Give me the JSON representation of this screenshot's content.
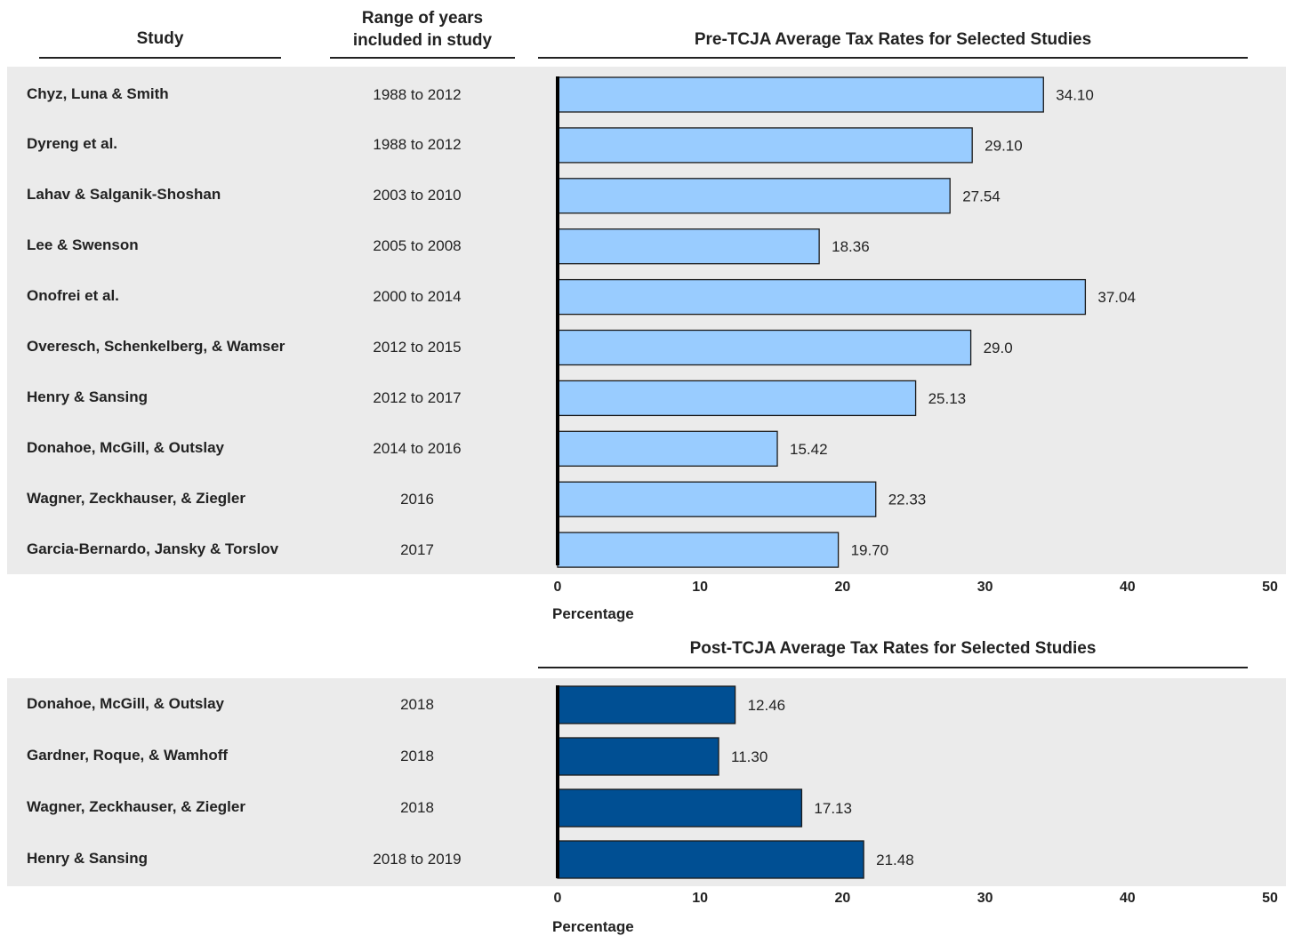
{
  "headers": {
    "study": "Study",
    "years_line1": "Range of years",
    "years_line2": "included in study"
  },
  "colors": {
    "pre_bar": "#99ccff",
    "post_bar": "#004f93",
    "panel_bg": "#ebebeb",
    "axis": "#000000"
  },
  "chart_data": [
    {
      "type": "bar",
      "orientation": "horizontal",
      "title": "Pre-TCJA Average Tax Rates for Selected Studies",
      "xlabel": "Percentage",
      "xlim": [
        0,
        50
      ],
      "xticks": [
        "0",
        "10",
        "20",
        "30",
        "40",
        "50"
      ],
      "grid": false,
      "categories": [
        "Chyz, Luna & Smith",
        "Dyreng et al.",
        "Lahav & Salganik-Shoshan",
        "Lee & Swenson",
        "Onofrei et al.",
        "Overesch, Schenkelberg, & Wamser",
        "Henry & Sansing",
        "Donahoe, McGill, & Outslay",
        "Wagner, Zeckhauser, & Ziegler",
        "Garcia-Bernardo, Jansky & Torslov"
      ],
      "years": [
        "1988 to 2012",
        "1988 to 2012",
        "2003 to 2010",
        "2005 to 2008",
        "2000 to 2014",
        "2012 to 2015",
        "2012 to 2017",
        "2014 to 2016",
        "2016",
        "2017"
      ],
      "values": [
        34.1,
        29.1,
        27.54,
        18.36,
        37.04,
        29.0,
        25.13,
        15.42,
        22.33,
        19.7
      ],
      "value_labels": [
        "34.10",
        "29.10",
        "27.54",
        "18.36",
        "37.04",
        "29.0",
        "25.13",
        "15.42",
        "22.33",
        "19.70"
      ]
    },
    {
      "type": "bar",
      "orientation": "horizontal",
      "title": "Post-TCJA Average Tax Rates for Selected Studies",
      "xlabel": "Percentage",
      "xlim": [
        0,
        50
      ],
      "xticks": [
        "0",
        "10",
        "20",
        "30",
        "40",
        "50"
      ],
      "grid": false,
      "categories": [
        "Donahoe, McGill, & Outslay",
        "Gardner, Roque, & Wamhoff",
        "Wagner, Zeckhauser, & Ziegler",
        "Henry & Sansing"
      ],
      "years": [
        "2018",
        "2018",
        "2018",
        "2018 to 2019"
      ],
      "values": [
        12.46,
        11.3,
        17.13,
        21.48
      ],
      "value_labels": [
        "12.46",
        "11.30",
        "17.13",
        "21.48"
      ]
    }
  ]
}
